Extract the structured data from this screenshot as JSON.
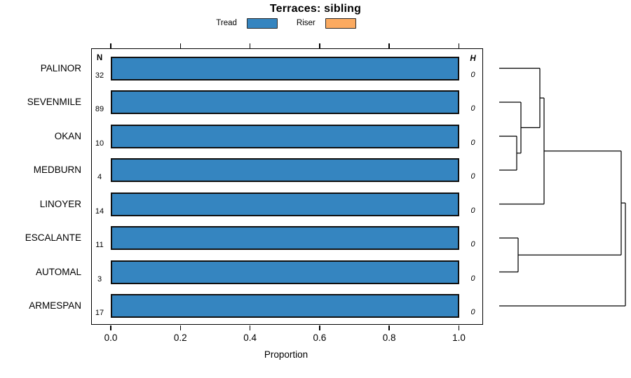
{
  "chart_data": {
    "type": "bar",
    "orientation": "horizontal",
    "title": "Terraces: sibling",
    "xlabel": "Proportion",
    "xlim": [
      0.0,
      1.05
    ],
    "xticks": [
      0.0,
      0.2,
      0.4,
      0.6,
      0.8,
      1.0
    ],
    "grid": false,
    "legend_position": "top-center",
    "categories": [
      "PALINOR",
      "SEVENMILE",
      "OKAN",
      "MEDBURN",
      "LINOYER",
      "ESCALANTE",
      "AUTOMAL",
      "ARMESPAN"
    ],
    "series": [
      {
        "name": "Tread",
        "color": "#3585c0",
        "values": [
          1.0,
          1.0,
          1.0,
          1.0,
          1.0,
          1.0,
          1.0,
          1.0
        ]
      },
      {
        "name": "Riser",
        "color": "#fbaa60",
        "values": [
          0,
          0,
          0,
          0,
          0,
          0,
          0,
          0
        ]
      }
    ],
    "n_header": "N",
    "n_values": [
      "32",
      "89",
      "10",
      "4",
      "14",
      "11",
      "3",
      "17"
    ],
    "h_header": "H",
    "h_values": [
      "0",
      "0",
      "0",
      "0",
      "0",
      "0",
      "0",
      "0"
    ],
    "dendrogram": {
      "description": "right-side cluster tree over the 8 category rows, all merge heights ~0",
      "merge_order": [
        [
          "OKAN",
          "MEDBURN"
        ],
        [
          "SEVENMILE",
          [
            "OKAN",
            "MEDBURN"
          ]
        ],
        [
          "PALINOR",
          "..."
        ],
        [
          "...",
          "LINOYER"
        ],
        [
          "ESCALANTE",
          "AUTOMAL"
        ],
        [
          "upper",
          "ESCALANTE+AUTOMAL"
        ],
        [
          "all",
          "ARMESPAN"
        ]
      ],
      "segments": [
        [
          712,
          97.5,
          770,
          97.5
        ],
        [
          712,
          146,
          743,
          146
        ],
        [
          712,
          194.5,
          737,
          194.5
        ],
        [
          712,
          243,
          737,
          243
        ],
        [
          737,
          194.5,
          737,
          243
        ],
        [
          737,
          218.75,
          743,
          218.75
        ],
        [
          743,
          146,
          743,
          218.75
        ],
        [
          743,
          182.4,
          770,
          182.4
        ],
        [
          770,
          97.5,
          770,
          182.4
        ],
        [
          770,
          140,
          776,
          140
        ],
        [
          776,
          140,
          776,
          291.5
        ],
        [
          712,
          291.5,
          776,
          291.5
        ],
        [
          776,
          215.75,
          886,
          215.75
        ],
        [
          886,
          215.75,
          886,
          364.25
        ],
        [
          712,
          340,
          739,
          340
        ],
        [
          712,
          388.5,
          739,
          388.5
        ],
        [
          739,
          340,
          739,
          388.5
        ],
        [
          739,
          364.25,
          886,
          364.25
        ],
        [
          886,
          290,
          892,
          290
        ],
        [
          892,
          290,
          892,
          437
        ],
        [
          712,
          437,
          892,
          437
        ]
      ]
    }
  }
}
